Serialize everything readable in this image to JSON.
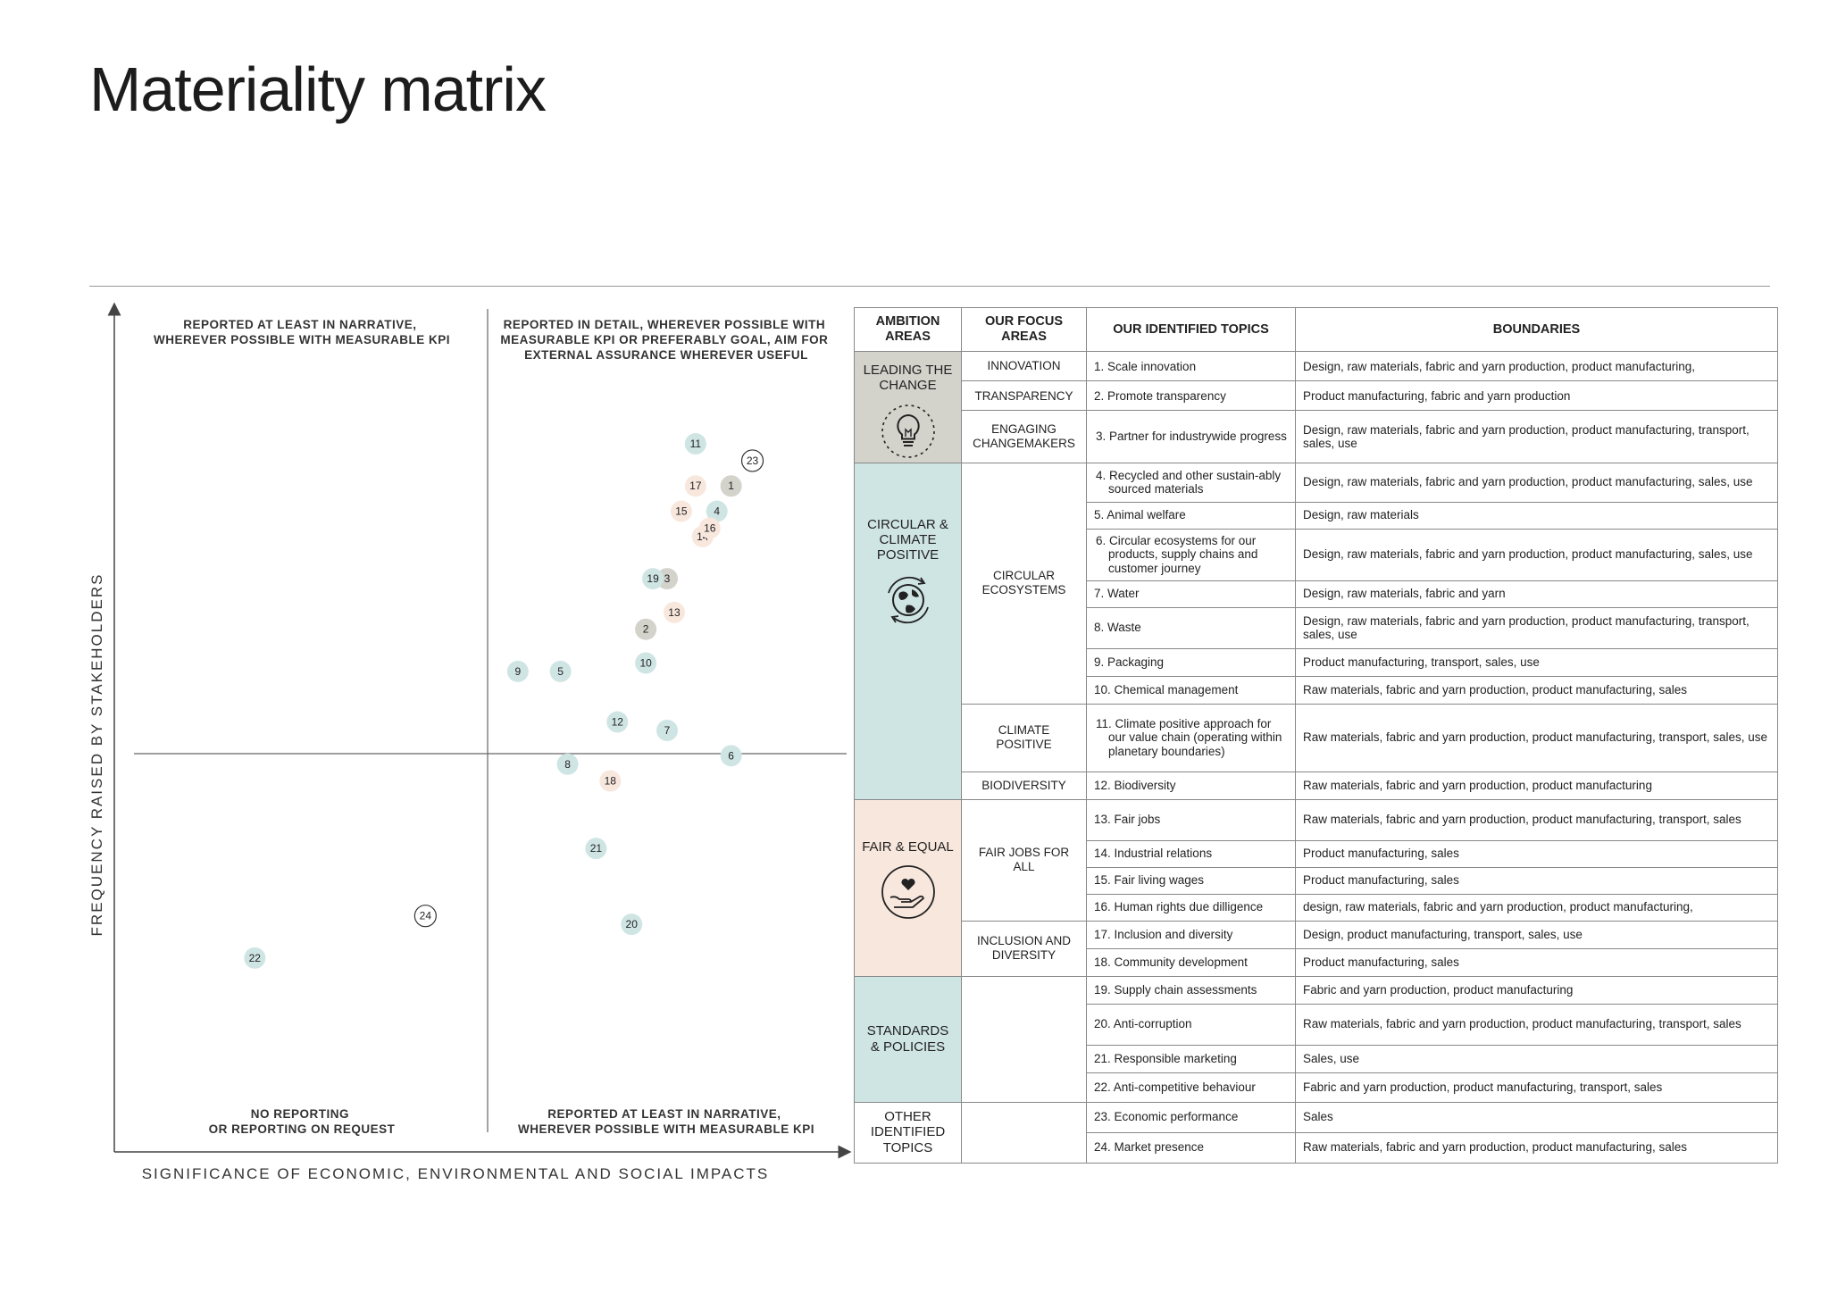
{
  "page": {
    "title": "Materiality matrix"
  },
  "colors": {
    "teal": "#cfe5e4",
    "grey": "#d3d2cb",
    "peach": "#f8e7dd",
    "white": "#ffffff",
    "axis": "#555555"
  },
  "chart_data": {
    "type": "scatter",
    "xlabel": "SIGNIFICANCE OF ECONOMIC, ENVIRONMENTAL AND SOCIAL IMPACTS",
    "ylabel": "FREQUENCY RAISED BY STAKEHOLDERS",
    "xlim": [
      0,
      100
    ],
    "ylim": [
      0,
      100
    ],
    "quadrants": {
      "top_left": "REPORTED AT LEAST IN NARRATIVE, WHEREVER POSSIBLE WITH MEASURABLE KPI",
      "top_right": "REPORTED IN DETAIL, WHEREVER POSSIBLE WITH MEASURABLE KPI OR PREFERABLY GOAL, AIM FOR EXTERNAL ASSURANCE WHEREVER USEFUL",
      "bottom_left": "NO REPORTING OR REPORTING ON REQUEST",
      "bottom_right": "REPORTED AT LEAST IN NARRATIVE, WHEREVER POSSIBLE WITH MEASURABLE KPI"
    },
    "points": [
      {
        "label": "1",
        "x": 84,
        "y": 79,
        "color": "grey"
      },
      {
        "label": "2",
        "x": 72,
        "y": 62,
        "color": "grey"
      },
      {
        "label": "3",
        "x": 75,
        "y": 68,
        "color": "grey"
      },
      {
        "label": "4",
        "x": 82,
        "y": 76,
        "color": "teal"
      },
      {
        "label": "5",
        "x": 60,
        "y": 57,
        "color": "teal"
      },
      {
        "label": "6",
        "x": 84,
        "y": 47,
        "color": "teal"
      },
      {
        "label": "7",
        "x": 75,
        "y": 50,
        "color": "teal"
      },
      {
        "label": "8",
        "x": 61,
        "y": 46,
        "color": "teal"
      },
      {
        "label": "9",
        "x": 54,
        "y": 57,
        "color": "teal"
      },
      {
        "label": "10",
        "x": 72,
        "y": 58,
        "color": "teal"
      },
      {
        "label": "11",
        "x": 79,
        "y": 84,
        "color": "teal"
      },
      {
        "label": "12",
        "x": 68,
        "y": 51,
        "color": "teal"
      },
      {
        "label": "13",
        "x": 76,
        "y": 64,
        "color": "peach"
      },
      {
        "label": "14",
        "x": 80,
        "y": 73,
        "color": "peach"
      },
      {
        "label": "15",
        "x": 77,
        "y": 76,
        "color": "peach"
      },
      {
        "label": "16",
        "x": 81,
        "y": 74,
        "color": "peach"
      },
      {
        "label": "17",
        "x": 79,
        "y": 79,
        "color": "peach"
      },
      {
        "label": "18",
        "x": 67,
        "y": 44,
        "color": "peach"
      },
      {
        "label": "19",
        "x": 73,
        "y": 68,
        "color": "teal"
      },
      {
        "label": "20",
        "x": 70,
        "y": 27,
        "color": "teal"
      },
      {
        "label": "21",
        "x": 65,
        "y": 36,
        "color": "teal"
      },
      {
        "label": "22",
        "x": 17,
        "y": 23,
        "color": "teal"
      },
      {
        "label": "23",
        "x": 87,
        "y": 82,
        "color": "white"
      },
      {
        "label": "24",
        "x": 41,
        "y": 28,
        "color": "white"
      }
    ]
  },
  "table": {
    "headers": {
      "ambition": "AMBITION AREAS",
      "focus": "OUR FOCUS AREAS",
      "topics": "OUR IDENTIFIED TOPICS",
      "boundaries": "BOUNDARIES"
    },
    "ambitions": [
      {
        "label": "LEADING THE CHANGE",
        "icon": "lightbulb-icon"
      },
      {
        "label": "CIRCULAR & CLIMATE POSITIVE",
        "icon": "globe-cycle-icon"
      },
      {
        "label": "FAIR & EQUAL",
        "icon": "heart-hand-icon"
      },
      {
        "label": "STANDARDS & POLICIES"
      },
      {
        "label": "OTHER IDENTIFIED TOPICS"
      }
    ],
    "focus": {
      "innovation": "INNOVATION",
      "transparency": "TRANSPARENCY",
      "engaging": "ENGAGING CHANGEMAKERS",
      "circular": "CIRCULAR ECOSYSTEMS",
      "climate": "CLIMATE POSITIVE",
      "biodiversity": "BIODIVERSITY",
      "fairjobs": "FAIR JOBS FOR ALL",
      "inclusion": "INCLUSION AND DIVERSITY"
    },
    "rows": [
      {
        "topic": "1. Scale innovation",
        "boundary": "Design, raw materials, fabric and yarn production, product manufacturing,"
      },
      {
        "topic": "2. Promote transparency",
        "boundary": "Product manufacturing, fabric and yarn production"
      },
      {
        "topic": "3. Partner for industrywide progress",
        "boundary": "Design, raw materials, fabric and yarn production, product manufacturing, transport, sales, use"
      },
      {
        "topic": "4. Recycled and other sustain-ably sourced materials",
        "boundary": "Design, raw materials, fabric and yarn production, product manufacturing, sales, use"
      },
      {
        "topic": "5. Animal welfare",
        "boundary": "Design, raw materials"
      },
      {
        "topic": "6. Circular ecosystems for our products, supply chains and customer journey",
        "boundary": "Design, raw materials, fabric and yarn production, product manufacturing, sales, use"
      },
      {
        "topic": "7. Water",
        "boundary": "Design, raw materials, fabric and yarn"
      },
      {
        "topic": "8. Waste",
        "boundary": "Design, raw materials, fabric and yarn production, product manufacturing, transport, sales, use"
      },
      {
        "topic": "9. Packaging",
        "boundary": "Product manufacturing, transport, sales, use"
      },
      {
        "topic": "10. Chemical management",
        "boundary": "Raw materials, fabric and yarn production, product manufacturing, sales"
      },
      {
        "topic": "11. Climate positive approach for our value chain (operating within planetary boundaries)",
        "boundary": "Raw materials, fabric and yarn production, product manufacturing, transport, sales, use"
      },
      {
        "topic": "12. Biodiversity",
        "boundary": "Raw materials, fabric and yarn production, product manufacturing"
      },
      {
        "topic": "13. Fair jobs",
        "boundary": "Raw materials, fabric and yarn production, product manufacturing, transport, sales"
      },
      {
        "topic": "14. Industrial relations",
        "boundary": "Product manufacturing, sales"
      },
      {
        "topic": "15. Fair living wages",
        "boundary": "Product manufacturing, sales"
      },
      {
        "topic": "16. Human rights due dilligence",
        "boundary": "design, raw materials, fabric and yarn production, product manufacturing,"
      },
      {
        "topic": "17. Inclusion and diversity",
        "boundary": "Design, product manufacturing, transport, sales, use"
      },
      {
        "topic": "18. Community development",
        "boundary": "Product manufacturing, sales"
      },
      {
        "topic": "19. Supply chain assessments",
        "boundary": "Fabric and yarn production, product manufacturing"
      },
      {
        "topic": "20. Anti-corruption",
        "boundary": "Raw materials, fabric and yarn production, product manufacturing, transport, sales"
      },
      {
        "topic": "21. Responsible marketing",
        "boundary": "Sales, use"
      },
      {
        "topic": "22. Anti-competitive behaviour",
        "boundary": "Fabric and yarn production, product manufacturing, transport, sales"
      },
      {
        "topic": "23. Economic performance",
        "boundary": "Sales"
      },
      {
        "topic": "24. Market presence",
        "boundary": "Raw materials, fabric and yarn production, product manufacturing, sales"
      }
    ]
  }
}
